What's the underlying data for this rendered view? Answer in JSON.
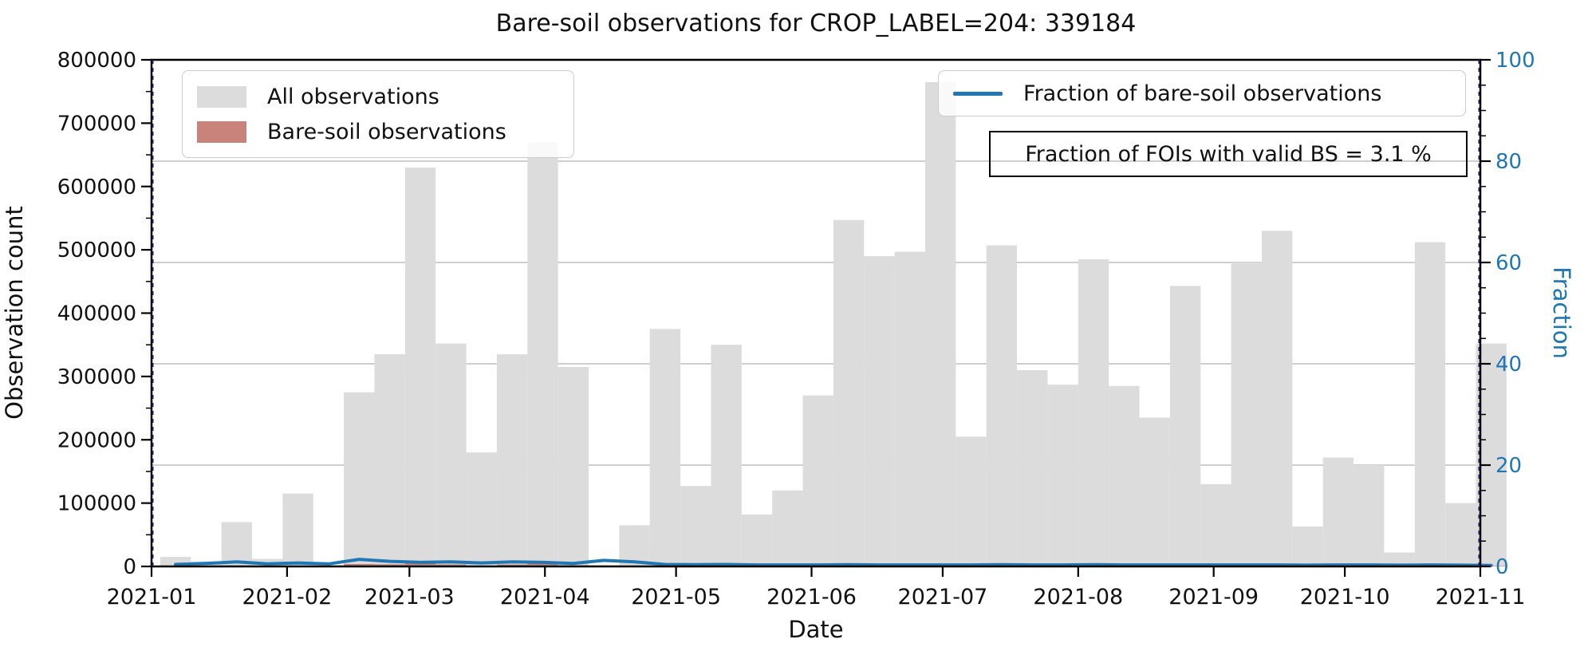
{
  "chart_data": {
    "type": "bar",
    "title": "Bare-soil observations for CROP_LABEL=204: 339184",
    "xlabel": "Date",
    "ylabel_left": "Observation count",
    "ylabel_right": "Fraction",
    "annotation": "Fraction of FOIs with valid BS = 3.1 %",
    "legend_position": {
      "bars": "upper left",
      "line": "upper right"
    },
    "grid": "horizontal lines at right-axis ticks 20/40/60/80",
    "x_tick_labels": [
      "2021-01",
      "2021-02",
      "2021-03",
      "2021-04",
      "2021-05",
      "2021-06",
      "2021-07",
      "2021-08",
      "2021-09",
      "2021-10",
      "2021-11"
    ],
    "month_start_days": [
      0,
      31,
      59,
      90,
      120,
      151,
      181,
      212,
      243,
      273,
      304
    ],
    "x_range_days": 304,
    "y_left_axis": {
      "min": 0,
      "max": 800000,
      "tick_step": 100000,
      "minor_step": 50000,
      "tick_labels": [
        "0",
        "100000",
        "200000",
        "300000",
        "400000",
        "500000",
        "600000",
        "700000",
        "800000"
      ]
    },
    "y_right_axis": {
      "min": 0,
      "max": 100,
      "tick_step": 20,
      "minor_step": 5,
      "tick_labels": [
        "0",
        "20",
        "40",
        "60",
        "80",
        "100"
      ],
      "color": "#1f77b4"
    },
    "week_starts": [
      "2021-01-03",
      "2021-01-10",
      "2021-01-17",
      "2021-01-24",
      "2021-01-31",
      "2021-02-07",
      "2021-02-14",
      "2021-02-21",
      "2021-02-28",
      "2021-03-07",
      "2021-03-14",
      "2021-03-21",
      "2021-03-28",
      "2021-04-04",
      "2021-04-11",
      "2021-04-18",
      "2021-04-25",
      "2021-05-02",
      "2021-05-09",
      "2021-05-16",
      "2021-05-23",
      "2021-05-30",
      "2021-06-06",
      "2021-06-13",
      "2021-06-20",
      "2021-06-27",
      "2021-07-04",
      "2021-07-11",
      "2021-07-18",
      "2021-07-25",
      "2021-08-01",
      "2021-08-08",
      "2021-08-15",
      "2021-08-22",
      "2021-08-29",
      "2021-09-05",
      "2021-09-12",
      "2021-09-19",
      "2021-09-26",
      "2021-10-03",
      "2021-10-10",
      "2021-10-17",
      "2021-10-24",
      "2021-10-31"
    ],
    "series": [
      {
        "name": "All observations",
        "type": "bar",
        "axis": "left",
        "color": "#dcdcdc",
        "values": [
          15000,
          8000,
          70000,
          12000,
          115000,
          2000,
          275000,
          335000,
          630000,
          352000,
          180000,
          335000,
          670000,
          315000,
          2000,
          65000,
          375000,
          127000,
          350000,
          82000,
          120000,
          270000,
          547000,
          490000,
          497000,
          765000,
          205000,
          507000,
          310000,
          287000,
          485000,
          285000,
          235000,
          443000,
          130000,
          480000,
          530000,
          63000,
          172000,
          160000,
          22000,
          512000,
          100000,
          352000
        ]
      },
      {
        "name": "Bare-soil observations",
        "type": "bar",
        "axis": "left",
        "color": "#c9837a",
        "values": [
          60,
          48,
          630,
          60,
          805,
          10,
          3850,
          3350,
          5040,
          3170,
          1260,
          3015,
          5360,
          1890,
          24,
          585,
          1500,
          445,
          1400,
          250,
          360,
          810,
          1915,
          1470,
          1490,
          2295,
          615,
          1775,
          930,
          860,
          1700,
          855,
          705,
          1330,
          390,
          1440,
          1590,
          160,
          516,
          480,
          55,
          1536,
          250,
          704
        ]
      },
      {
        "name": "Fraction of bare-soil observations",
        "type": "line",
        "axis": "right",
        "color": "#1f77b4",
        "values": [
          0.4,
          0.6,
          0.9,
          0.5,
          0.7,
          0.5,
          1.4,
          1.0,
          0.8,
          0.9,
          0.7,
          0.9,
          0.8,
          0.6,
          1.2,
          0.9,
          0.4,
          0.35,
          0.4,
          0.3,
          0.3,
          0.3,
          0.35,
          0.3,
          0.3,
          0.3,
          0.3,
          0.35,
          0.3,
          0.3,
          0.35,
          0.3,
          0.3,
          0.3,
          0.3,
          0.3,
          0.3,
          0.25,
          0.3,
          0.3,
          0.25,
          0.3,
          0.25,
          0.2
        ]
      }
    ],
    "colors": {
      "grid": "#b2b2b2",
      "spine": "#000000",
      "edge_dash": "#1b1b5e",
      "tick_label_left": "#111111",
      "tick_label_right": "#1f77b4"
    }
  }
}
